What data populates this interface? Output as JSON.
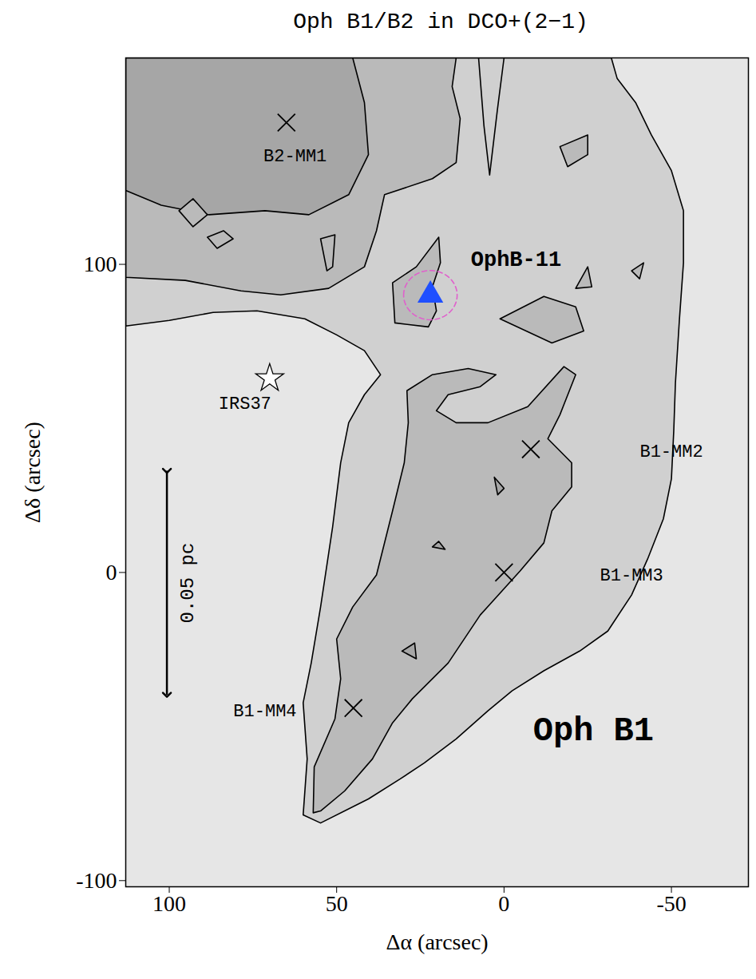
{
  "chart_data": {
    "type": "contour",
    "title": "Oph B1/B2 in DCO+(2−1)",
    "x_label": "Δα (arcsec)",
    "y_label": "Δδ (arcsec)",
    "xlim": [
      113,
      -73
    ],
    "ylim": [
      -102,
      167
    ],
    "xticks": [
      100,
      50,
      0,
      -50
    ],
    "yticks": [
      -100,
      0,
      100
    ],
    "contours": [
      {
        "level": 1,
        "closed": true,
        "points": [
          [
            113,
            80
          ],
          [
            100,
            81.8
          ],
          [
            86.9,
            84.4
          ],
          [
            73.8,
            84.9
          ],
          [
            59.5,
            82.3
          ],
          [
            50,
            77.1
          ],
          [
            41.7,
            72
          ],
          [
            36.9,
            64.2
          ],
          [
            41.7,
            57.7
          ],
          [
            46.4,
            48.6
          ],
          [
            48.8,
            35.6
          ],
          [
            51.2,
            14.8
          ],
          [
            54.8,
            -11.2
          ],
          [
            57.6,
            -29.4
          ],
          [
            60,
            -42.3
          ],
          [
            58.8,
            -60.5
          ],
          [
            60,
            -78.7
          ],
          [
            54.8,
            -81.3
          ],
          [
            40.5,
            -73.5
          ],
          [
            31,
            -67
          ],
          [
            23.8,
            -61.8
          ],
          [
            14.3,
            -54
          ],
          [
            4.8,
            -44.9
          ],
          [
            -2.4,
            -38.4
          ],
          [
            -11.9,
            -31.9
          ],
          [
            -22.6,
            -25.5
          ],
          [
            -31,
            -19
          ],
          [
            -38.1,
            -7.3
          ],
          [
            -42.9,
            4.4
          ],
          [
            -47.6,
            17.4
          ],
          [
            -50,
            30.4
          ],
          [
            -50.7,
            46
          ],
          [
            -51.2,
            61.6
          ],
          [
            -52.4,
            82.3
          ],
          [
            -53.6,
            100.5
          ],
          [
            -53.6,
            117.4
          ],
          [
            -50,
            130.4
          ],
          [
            -44,
            142
          ],
          [
            -39.3,
            152.5
          ],
          [
            -33.8,
            160.3
          ],
          [
            -32.1,
            166.8
          ],
          [
            -32.1,
            167
          ],
          [
            113,
            167
          ]
        ]
      },
      {
        "level": 2,
        "closed": true,
        "points": [
          [
            113,
            95.8
          ],
          [
            95.2,
            94.8
          ],
          [
            78.6,
            91.4
          ],
          [
            66.7,
            90.1
          ],
          [
            52.4,
            92.2
          ],
          [
            41.7,
            99.2
          ],
          [
            38.1,
            110.9
          ],
          [
            35.7,
            122.6
          ],
          [
            21.4,
            127.8
          ],
          [
            14.3,
            133
          ],
          [
            13.1,
            147.3
          ],
          [
            15.5,
            157.7
          ],
          [
            14.3,
            167
          ],
          [
            113,
            167
          ]
        ]
      },
      {
        "level": 3,
        "closed": true,
        "points": [
          [
            113,
            124
          ],
          [
            102.4,
            119.2
          ],
          [
            88.1,
            116.1
          ],
          [
            71.4,
            117.4
          ],
          [
            58.3,
            116.1
          ],
          [
            46.4,
            122.6
          ],
          [
            40.5,
            135.6
          ],
          [
            41.7,
            152.5
          ],
          [
            45.2,
            167
          ],
          [
            113,
            167
          ]
        ]
      },
      {
        "level": 1,
        "closed": false,
        "points": [
          [
            7.6,
            167
          ],
          [
            6,
            145
          ],
          [
            4.3,
            129
          ],
          [
            2,
            150
          ],
          [
            0,
            167
          ]
        ]
      },
      {
        "level": 2,
        "closed": true,
        "points": [
          [
            57,
            -78
          ],
          [
            56.7,
            -63.1
          ],
          [
            50.5,
            -47.5
          ],
          [
            48.8,
            -34.5
          ],
          [
            50,
            -21.6
          ],
          [
            45.2,
            -11.2
          ],
          [
            38.1,
            -0.8
          ],
          [
            33.3,
            20
          ],
          [
            29.8,
            35.6
          ],
          [
            28.6,
            48.6
          ],
          [
            29,
            59
          ],
          [
            21.4,
            64.2
          ],
          [
            10.7,
            66.2
          ],
          [
            2.4,
            64.2
          ],
          [
            7.1,
            60.3
          ],
          [
            16.7,
            57.7
          ],
          [
            20.2,
            52.5
          ],
          [
            14.3,
            48.6
          ],
          [
            4.8,
            48.6
          ],
          [
            -7.1,
            53.8
          ],
          [
            -17.9,
            66.8
          ],
          [
            -21.4,
            64.2
          ],
          [
            -16.7,
            51.2
          ],
          [
            -13.1,
            43.4
          ],
          [
            -20.2,
            35.6
          ],
          [
            -20.2,
            27.8
          ],
          [
            -14.3,
            20
          ],
          [
            -11.9,
            9.6
          ],
          [
            -4.8,
            0.5
          ],
          [
            7.1,
            -13.8
          ],
          [
            16.7,
            -29.4
          ],
          [
            27.4,
            -41
          ],
          [
            33.3,
            -48.8
          ],
          [
            39.3,
            -60.5
          ],
          [
            47.6,
            -70.9
          ],
          [
            54.8,
            -77.4
          ]
        ]
      },
      {
        "level": 2,
        "closed": true,
        "points": [
          [
            32.6,
            81
          ],
          [
            33.3,
            94
          ],
          [
            26.2,
            99.2
          ],
          [
            19.5,
            108.8
          ],
          [
            19,
            100.5
          ],
          [
            21.4,
            92.7
          ],
          [
            20.2,
            84.9
          ],
          [
            22.6,
            79.7
          ]
        ]
      },
      {
        "level": 2,
        "closed": true,
        "points": [
          [
            97.1,
            117.4
          ],
          [
            92.9,
            121.3
          ],
          [
            88.6,
            116.1
          ],
          [
            92.9,
            112.2
          ]
        ]
      },
      {
        "level": 2,
        "closed": true,
        "points": [
          [
            88.6,
            108.8
          ],
          [
            83.8,
            110.9
          ],
          [
            80.9,
            108.3
          ],
          [
            85.7,
            105.2
          ]
        ]
      },
      {
        "level": 2,
        "closed": true,
        "points": [
          [
            54.8,
            108.3
          ],
          [
            50.5,
            109.6
          ],
          [
            51.2,
            99.2
          ],
          [
            52.9,
            97.9
          ]
        ]
      },
      {
        "level": 2,
        "closed": true,
        "points": [
          [
            -16.7,
            138.2
          ],
          [
            -25,
            142
          ],
          [
            -25,
            135.6
          ],
          [
            -19,
            131.7
          ]
        ]
      },
      {
        "level": 2,
        "closed": true,
        "points": [
          [
            1.2,
            82.3
          ],
          [
            -11.9,
            89.6
          ],
          [
            -21.4,
            86.2
          ],
          [
            -23.8,
            78.4
          ],
          [
            -14.3,
            74.5
          ]
        ]
      },
      {
        "level": 2,
        "closed": true,
        "points": [
          [
            -21.4,
            92.2
          ],
          [
            -25,
            99.2
          ],
          [
            -26.2,
            92.7
          ]
        ]
      },
      {
        "level": 2,
        "closed": true,
        "points": [
          [
            -38.1,
            97.9
          ],
          [
            -41.7,
            100.5
          ],
          [
            -40.5,
            95.3
          ]
        ]
      },
      {
        "level": 3,
        "closed": true,
        "points": [
          [
            2.9,
            30.9
          ],
          [
            0,
            27.3
          ],
          [
            1.9,
            25.2
          ]
        ]
      },
      {
        "level": 3,
        "closed": true,
        "points": [
          [
            21.4,
            8.3
          ],
          [
            19.5,
            10.1
          ],
          [
            17.6,
            7.5
          ]
        ]
      },
      {
        "level": 3,
        "closed": true,
        "points": [
          [
            30.5,
            -25.5
          ],
          [
            26.7,
            -22.9
          ],
          [
            26.2,
            -28
          ]
        ]
      }
    ],
    "sources": [
      {
        "label": "B2-MM1",
        "x": 65,
        "y": 146,
        "marker": "x",
        "label_x": 62.4,
        "label_y": 135.3
      },
      {
        "label": "IRS37",
        "x": 70,
        "y": 63,
        "marker": "star",
        "label_x": 77.4,
        "label_y": 55
      },
      {
        "label": "OphB-11",
        "x": 22,
        "y": 90,
        "marker": "triangle",
        "color": "#1f4fff",
        "circle_radius": 8,
        "label_x": -3.6,
        "label_y": 101.8
      },
      {
        "label": "B1-MM2",
        "x": -8,
        "y": 40,
        "marker": "x",
        "label_x": -50,
        "label_y": 39.5
      },
      {
        "label": "B1-MM3",
        "x": 0,
        "y": 0,
        "marker": "x",
        "label_x": -38.1,
        "label_y": -0.8
      },
      {
        "label": "B1-MM4",
        "x": 45,
        "y": -44,
        "marker": "x",
        "label_x": 71.4,
        "label_y": -44.9
      }
    ],
    "annotations": [
      {
        "text": "Oph B1",
        "x": -26.7,
        "y": -50.9
      }
    ],
    "scale_bar": {
      "label": "0.05 pc",
      "x": 100.7,
      "y1": 33,
      "y2": -39.7,
      "label_x": 94.8,
      "label_y": -3.4
    }
  }
}
